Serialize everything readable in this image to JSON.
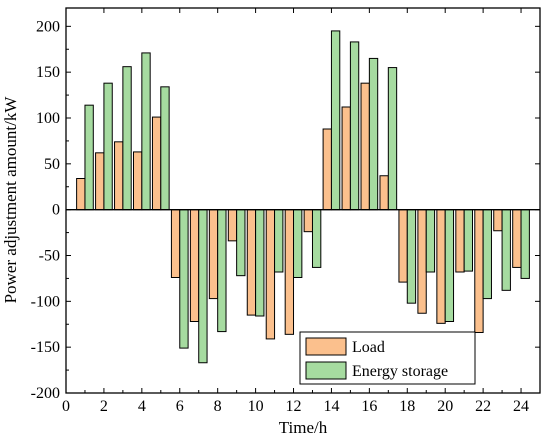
{
  "chart_data": {
    "type": "bar",
    "xlabel": "Time/h",
    "ylabel": "Power adjustment amount/kW",
    "xlim": [
      0,
      25
    ],
    "ylim": [
      -200,
      220
    ],
    "xticks": [
      0,
      2,
      4,
      6,
      8,
      10,
      12,
      14,
      16,
      18,
      20,
      22,
      24
    ],
    "yticks": [
      -200,
      -150,
      -100,
      -50,
      0,
      50,
      100,
      150,
      200
    ],
    "x": [
      1,
      2,
      3,
      4,
      5,
      6,
      7,
      8,
      9,
      10,
      11,
      12,
      13,
      14,
      15,
      16,
      17,
      18,
      19,
      20,
      21,
      22,
      23,
      24
    ],
    "series": [
      {
        "name": "Load",
        "color": "#FBC08D",
        "values": [
          34,
          62,
          74,
          63,
          101,
          -74,
          -122,
          -97,
          -34,
          -115,
          -141,
          -136,
          -24,
          88,
          112,
          138,
          37,
          -79,
          -113,
          -124,
          -68,
          -134,
          -23,
          -63
        ]
      },
      {
        "name": "Energy storage",
        "color": "#A6DBA0",
        "values": [
          114,
          138,
          156,
          171,
          134,
          -151,
          -167,
          -133,
          -72,
          -116,
          -68,
          -74,
          -63,
          195,
          183,
          165,
          155,
          -102,
          -68,
          -122,
          -67,
          -97,
          -88,
          -75
        ]
      }
    ],
    "legend_position": "bottom-right",
    "grid": false
  }
}
